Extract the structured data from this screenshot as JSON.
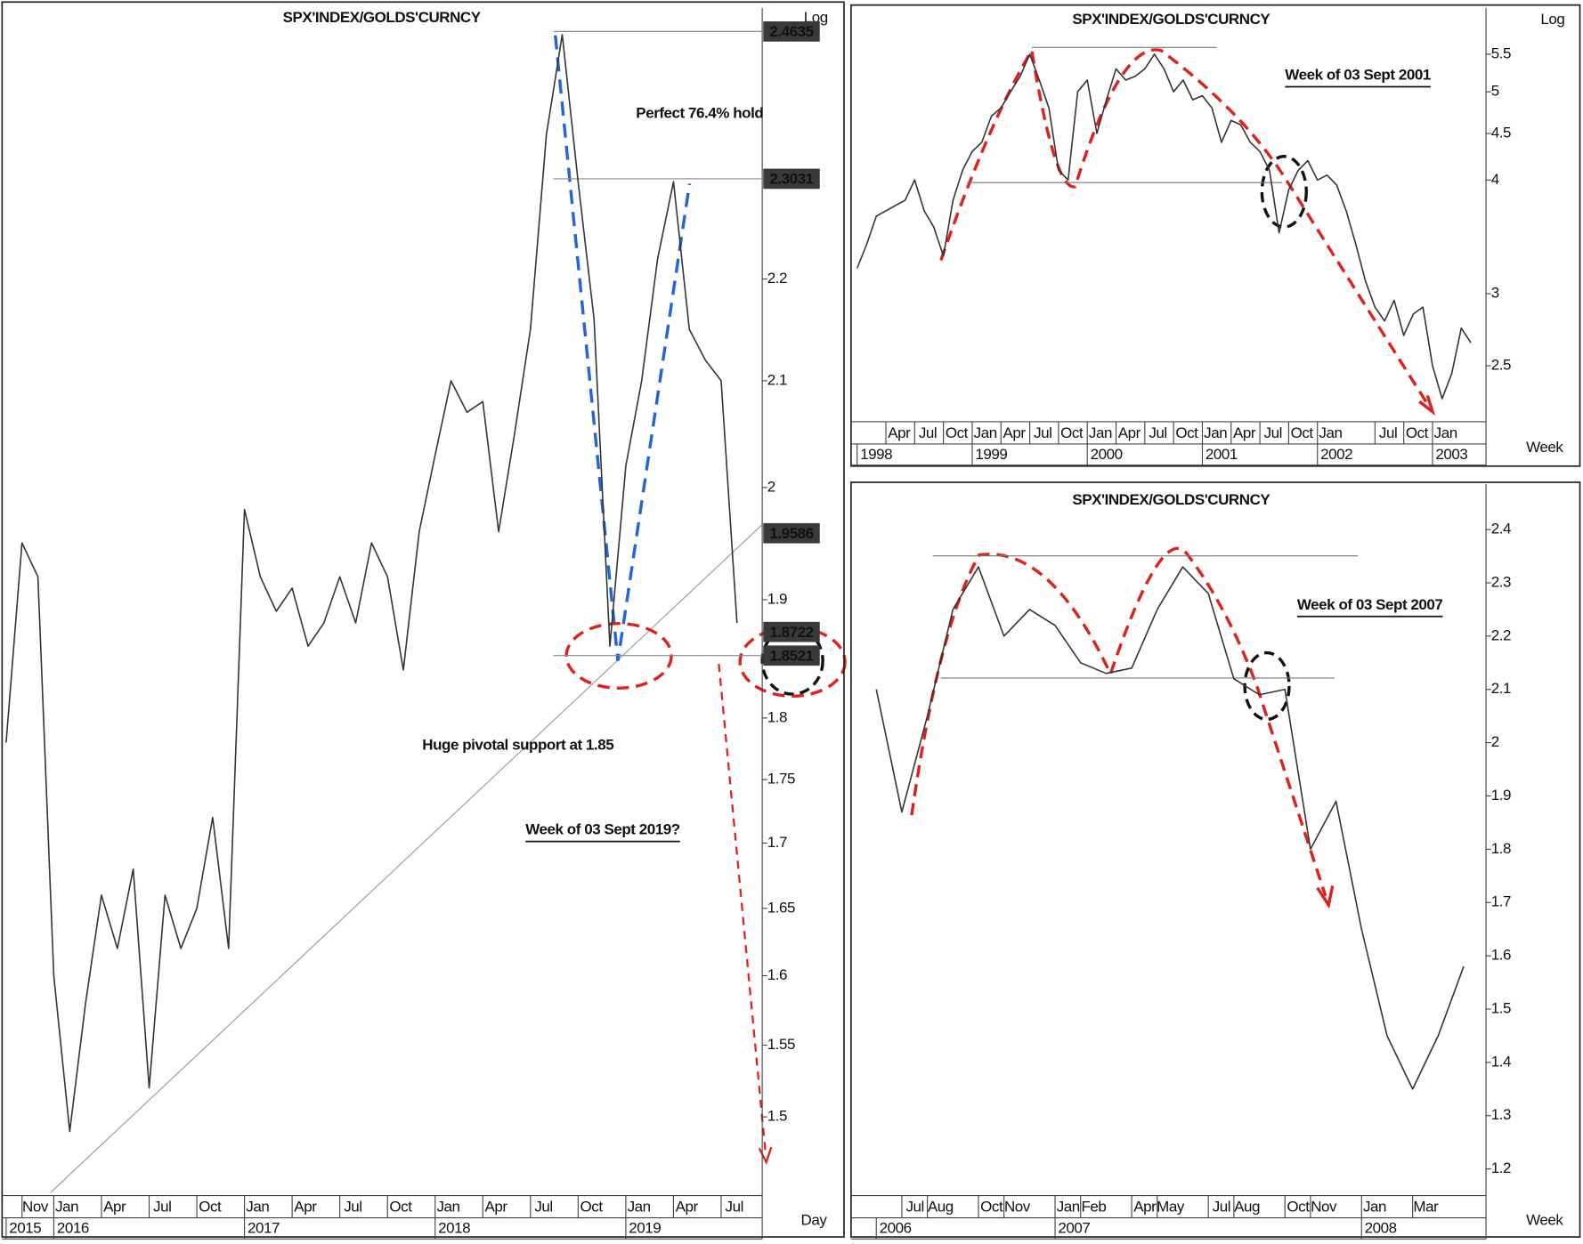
{
  "chart_data": [
    {
      "type": "line",
      "title": "SPX'INDEX/GOLDS'CURNCY",
      "log_scale": true,
      "scale_label": "Log",
      "period": "Day",
      "x": [
        "2015-10",
        "2015-11",
        "2015-12",
        "2016-01",
        "2016-02",
        "2016-03",
        "2016-04",
        "2016-05",
        "2016-06",
        "2016-07",
        "2016-08",
        "2016-09",
        "2016-10",
        "2016-11",
        "2016-12",
        "2017-01",
        "2017-02",
        "2017-03",
        "2017-04",
        "2017-05",
        "2017-06",
        "2017-07",
        "2017-08",
        "2017-09",
        "2017-10",
        "2017-11",
        "2017-12",
        "2018-01",
        "2018-02",
        "2018-03",
        "2018-04",
        "2018-05",
        "2018-06",
        "2018-07",
        "2018-08",
        "2018-09",
        "2018-10",
        "2018-11",
        "2018-12",
        "2019-01",
        "2019-02",
        "2019-03",
        "2019-04",
        "2019-05",
        "2019-06",
        "2019-07",
        "2019-08"
      ],
      "color": "#333333",
      "values": [
        1.78,
        1.95,
        1.92,
        1.6,
        1.49,
        1.58,
        1.66,
        1.62,
        1.68,
        1.52,
        1.66,
        1.62,
        1.65,
        1.72,
        1.62,
        1.98,
        1.92,
        1.89,
        1.91,
        1.86,
        1.88,
        1.92,
        1.88,
        1.95,
        1.92,
        1.84,
        1.96,
        2.03,
        2.1,
        2.07,
        2.08,
        1.96,
        2.05,
        2.15,
        2.35,
        2.46,
        2.3,
        2.16,
        1.86,
        2.02,
        2.1,
        2.22,
        2.3,
        2.15,
        2.12,
        2.1,
        1.88
      ],
      "ylim": [
        1.447,
        2.49
      ],
      "yticks": [
        1.5,
        1.55,
        1.6,
        1.65,
        1.7,
        1.75,
        1.8,
        1.9,
        2,
        2.1,
        2.2
      ],
      "xticks": [
        {
          "value": "2015-11",
          "label": "Nov"
        },
        {
          "value": "2016-01",
          "label": "Jan"
        },
        {
          "value": "2016-04",
          "label": "Apr"
        },
        {
          "value": "2016-07",
          "label": "Jul"
        },
        {
          "value": "2016-10",
          "label": "Oct"
        },
        {
          "value": "2017-01",
          "label": "Jan"
        },
        {
          "value": "2017-04",
          "label": "Apr"
        },
        {
          "value": "2017-07",
          "label": "Jul"
        },
        {
          "value": "2017-10",
          "label": "Oct"
        },
        {
          "value": "2018-01",
          "label": "Jan"
        },
        {
          "value": "2018-04",
          "label": "Apr"
        },
        {
          "value": "2018-07",
          "label": "Jul"
        },
        {
          "value": "2018-10",
          "label": "Oct"
        },
        {
          "value": "2019-01",
          "label": "Jan"
        },
        {
          "value": "2019-04",
          "label": "Apr"
        },
        {
          "value": "2019-07",
          "label": "Jul"
        }
      ],
      "year_ticks": [
        {
          "value": "2015-10",
          "label": "2015"
        },
        {
          "value": "2016-01",
          "label": "2016"
        },
        {
          "value": "2017-01",
          "label": "2017"
        },
        {
          "value": "2018-01",
          "label": "2018"
        },
        {
          "value": "2019-01",
          "label": "2019"
        }
      ],
      "level_labels": [
        2.4635,
        2.3031,
        1.9586,
        1.8722,
        1.8521
      ],
      "annotations": [
        "Perfect 76.4% hold",
        "Huge pivotal support at 1.85",
        "Week of 03 Sept 2019?"
      ]
    },
    {
      "type": "line",
      "title": "SPX'INDEX/GOLDS'CURNCY",
      "log_scale": true,
      "scale_label": "Log",
      "period": "Week",
      "x": [
        "1998-01",
        "1998-02",
        "1998-03",
        "1998-04",
        "1998-05",
        "1998-06",
        "1998-07",
        "1998-08",
        "1998-09",
        "1998-10",
        "1998-11",
        "1998-12",
        "1999-01",
        "1999-02",
        "1999-03",
        "1999-04",
        "1999-05",
        "1999-06",
        "1999-07",
        "1999-08",
        "1999-09",
        "1999-10",
        "1999-11",
        "1999-12",
        "2000-01",
        "2000-02",
        "2000-03",
        "2000-04",
        "2000-05",
        "2000-06",
        "2000-07",
        "2000-08",
        "2000-09",
        "2000-10",
        "2000-11",
        "2000-12",
        "2001-01",
        "2001-02",
        "2001-03",
        "2001-04",
        "2001-05",
        "2001-06",
        "2001-07",
        "2001-08",
        "2001-09",
        "2001-10",
        "2001-11",
        "2001-12",
        "2002-01",
        "2002-02",
        "2002-03",
        "2002-04",
        "2002-05",
        "2002-06",
        "2002-07",
        "2002-08",
        "2002-09",
        "2002-10",
        "2002-11",
        "2002-12",
        "2003-01",
        "2003-02",
        "2003-03",
        "2003-04",
        "2003-05"
      ],
      "color": "#333333",
      "values": [
        3.2,
        3.4,
        3.65,
        3.7,
        3.75,
        3.8,
        4.0,
        3.7,
        3.55,
        3.3,
        3.8,
        4.1,
        4.3,
        4.4,
        4.7,
        4.8,
        5.0,
        5.2,
        5.5,
        5.15,
        4.8,
        4.1,
        4.0,
        5.0,
        5.15,
        4.5,
        4.9,
        5.3,
        5.15,
        5.2,
        5.3,
        5.5,
        5.3,
        5.0,
        5.15,
        4.9,
        4.95,
        4.8,
        4.4,
        4.65,
        4.6,
        4.4,
        4.3,
        4.1,
        3.5,
        3.9,
        4.1,
        4.2,
        4.0,
        4.05,
        3.95,
        3.7,
        3.4,
        3.1,
        2.9,
        2.8,
        2.95,
        2.7,
        2.85,
        2.9,
        2.5,
        2.3,
        2.45,
        2.75,
        2.65
      ],
      "ylim": [
        2.17,
        6.18
      ],
      "yticks": [
        2.5,
        3,
        4,
        4.5,
        5,
        5.5
      ],
      "xticks": [
        {
          "value": "1998-04",
          "label": "Apr"
        },
        {
          "value": "1998-07",
          "label": "Jul"
        },
        {
          "value": "1998-10",
          "label": "Oct"
        },
        {
          "value": "1999-01",
          "label": "Jan"
        },
        {
          "value": "1999-04",
          "label": "Apr"
        },
        {
          "value": "1999-07",
          "label": "Jul"
        },
        {
          "value": "1999-10",
          "label": "Oct"
        },
        {
          "value": "2000-01",
          "label": "Jan"
        },
        {
          "value": "2000-04",
          "label": "Apr"
        },
        {
          "value": "2000-07",
          "label": "Jul"
        },
        {
          "value": "2000-10",
          "label": "Oct"
        },
        {
          "value": "2001-01",
          "label": "Jan"
        },
        {
          "value": "2001-04",
          "label": "Apr"
        },
        {
          "value": "2001-07",
          "label": "Jul"
        },
        {
          "value": "2001-10",
          "label": "Oct"
        },
        {
          "value": "2002-01",
          "label": "Jan"
        },
        {
          "value": "2002-07",
          "label": "Jul"
        },
        {
          "value": "2002-10",
          "label": "Oct"
        },
        {
          "value": "2003-01",
          "label": "Jan"
        }
      ],
      "year_ticks": [
        {
          "value": "1998-01",
          "label": "1998"
        },
        {
          "value": "1999-01",
          "label": "1999"
        },
        {
          "value": "2000-01",
          "label": "2000"
        },
        {
          "value": "2001-01",
          "label": "2001"
        },
        {
          "value": "2002-01",
          "label": "2002"
        },
        {
          "value": "2003-01",
          "label": "2003"
        }
      ],
      "annotations": [
        "Week of 03 Sept 2001"
      ]
    },
    {
      "type": "line",
      "title": "SPX'INDEX/GOLDS'CURNCY",
      "log_scale": false,
      "period": "Week",
      "x": [
        "2006-06",
        "2006-07",
        "2006-08",
        "2006-09",
        "2006-10",
        "2006-11",
        "2006-12",
        "2007-01",
        "2007-02",
        "2007-03",
        "2007-04",
        "2007-05",
        "2007-06",
        "2007-07",
        "2007-08",
        "2007-09",
        "2007-10",
        "2007-11",
        "2007-12",
        "2008-01",
        "2008-02",
        "2008-03",
        "2008-04",
        "2008-05"
      ],
      "color": "#333333",
      "values": [
        2.1,
        1.87,
        2.05,
        2.25,
        2.33,
        2.2,
        2.25,
        2.22,
        2.15,
        2.13,
        2.14,
        2.25,
        2.33,
        2.28,
        2.12,
        2.09,
        2.1,
        1.8,
        1.89,
        1.65,
        1.45,
        1.35,
        1.45,
        1.58
      ],
      "ylim": [
        1.15,
        2.485
      ],
      "yticks": [
        1.2,
        1.3,
        1.4,
        1.5,
        1.6,
        1.7,
        1.8,
        1.9,
        2,
        2.1,
        2.2,
        2.3,
        2.4
      ],
      "xticks": [
        {
          "value": "2006-07",
          "label": "Jul"
        },
        {
          "value": "2006-08",
          "label": "Aug"
        },
        {
          "value": "2006-10",
          "label": "Oct"
        },
        {
          "value": "2006-11",
          "label": "Nov"
        },
        {
          "value": "2007-01",
          "label": "Jan"
        },
        {
          "value": "2007-02",
          "label": "Feb"
        },
        {
          "value": "2007-04",
          "label": "Apr"
        },
        {
          "value": "2007-05",
          "label": "May"
        },
        {
          "value": "2007-07",
          "label": "Jul"
        },
        {
          "value": "2007-08",
          "label": "Aug"
        },
        {
          "value": "2007-10",
          "label": "Oct"
        },
        {
          "value": "2007-11",
          "label": "Nov"
        },
        {
          "value": "2008-01",
          "label": "Jan"
        },
        {
          "value": "2008-03",
          "label": "Mar"
        }
      ],
      "year_ticks": [
        {
          "value": "2006-06",
          "label": "2006"
        },
        {
          "value": "2007-01",
          "label": "2007"
        },
        {
          "value": "2008-01",
          "label": "2008"
        }
      ],
      "annotations": [
        "Week of 03 Sept 2007"
      ]
    }
  ]
}
